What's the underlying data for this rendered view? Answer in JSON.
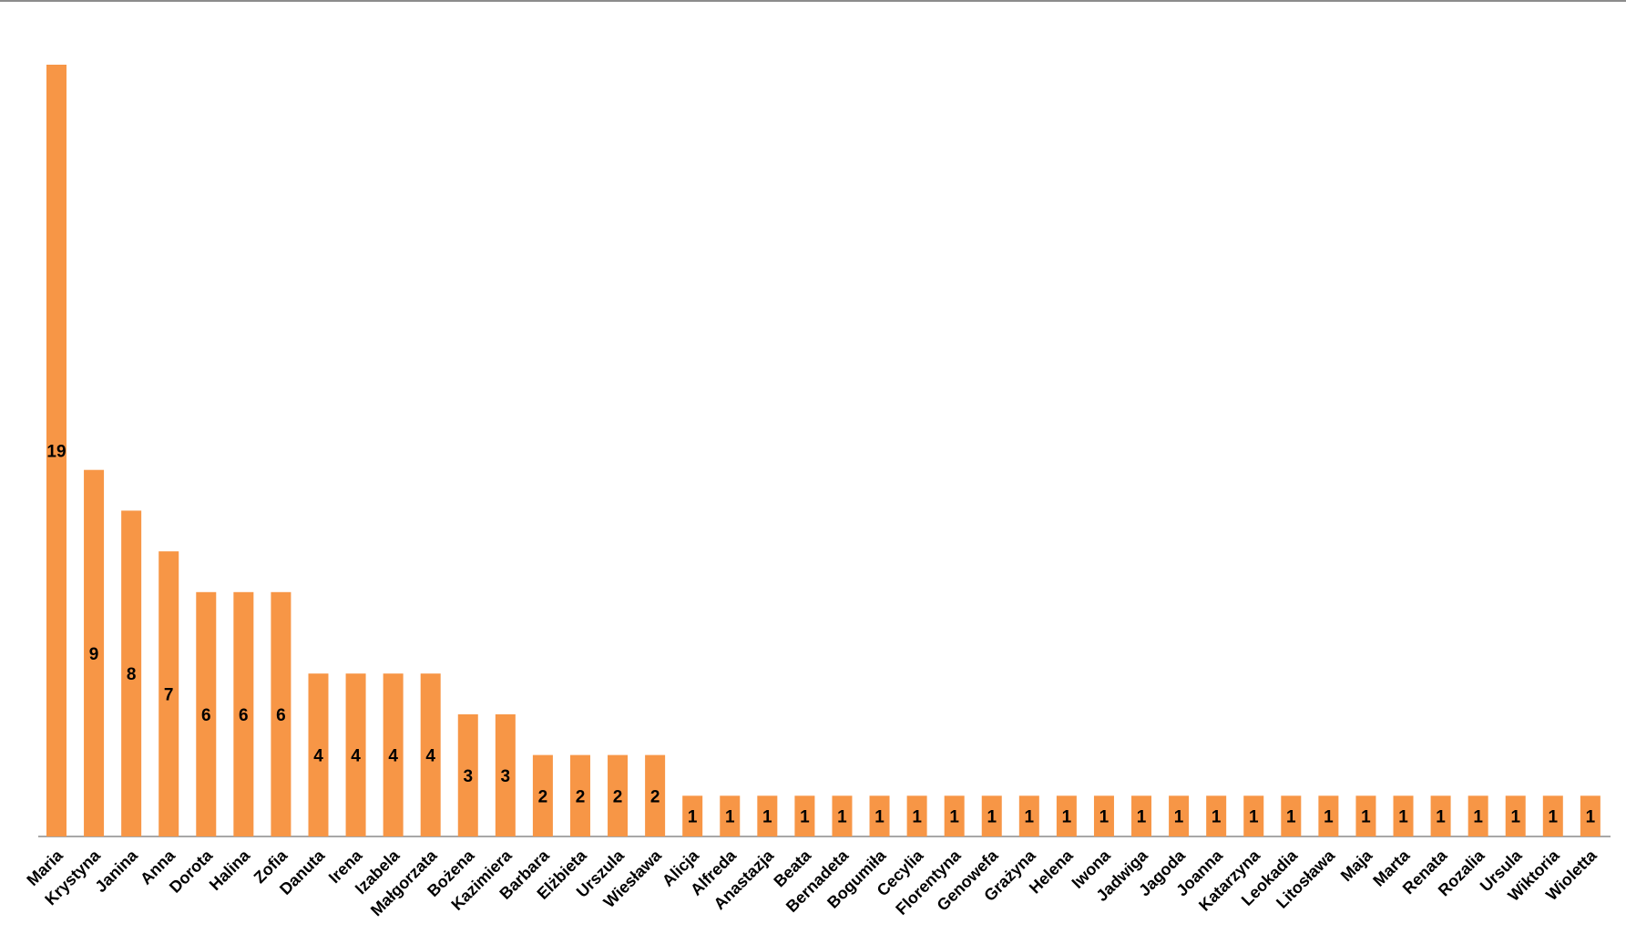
{
  "chart_data": {
    "type": "bar",
    "title": "",
    "xlabel": "",
    "ylabel": "",
    "ylim": [
      0,
      19
    ],
    "grid": false,
    "legend": "none",
    "bar_color": "#f79646",
    "axis_color": "#8c8c8c",
    "categories": [
      "Maria",
      "Krystyna",
      "Janina",
      "Anna",
      "Dorota",
      "Halina",
      "Zofia",
      "Danuta",
      "Irena",
      "Izabela",
      "Małgorzata",
      "Bożena",
      "Kazimiera",
      "Barbara",
      "Elżbieta",
      "Urszula",
      "Wiesława",
      "Alicja",
      "Alfreda",
      "Anastazja",
      "Beata",
      "Bernadeta",
      "Bogumiła",
      "Cecylia",
      "Florentyna",
      "Genowefa",
      "Grażyna",
      "Helena",
      "Iwona",
      "Jadwiga",
      "Jagoda",
      "Joanna",
      "Katarzyna",
      "Leokadia",
      "Litosława",
      "Maja",
      "Marta",
      "Renata",
      "Rozalia",
      "Ursula",
      "Wiktoria",
      "Wioletta"
    ],
    "values": [
      19,
      9,
      8,
      7,
      6,
      6,
      6,
      4,
      4,
      4,
      4,
      3,
      3,
      2,
      2,
      2,
      2,
      1,
      1,
      1,
      1,
      1,
      1,
      1,
      1,
      1,
      1,
      1,
      1,
      1,
      1,
      1,
      1,
      1,
      1,
      1,
      1,
      1,
      1,
      1,
      1,
      1
    ]
  }
}
